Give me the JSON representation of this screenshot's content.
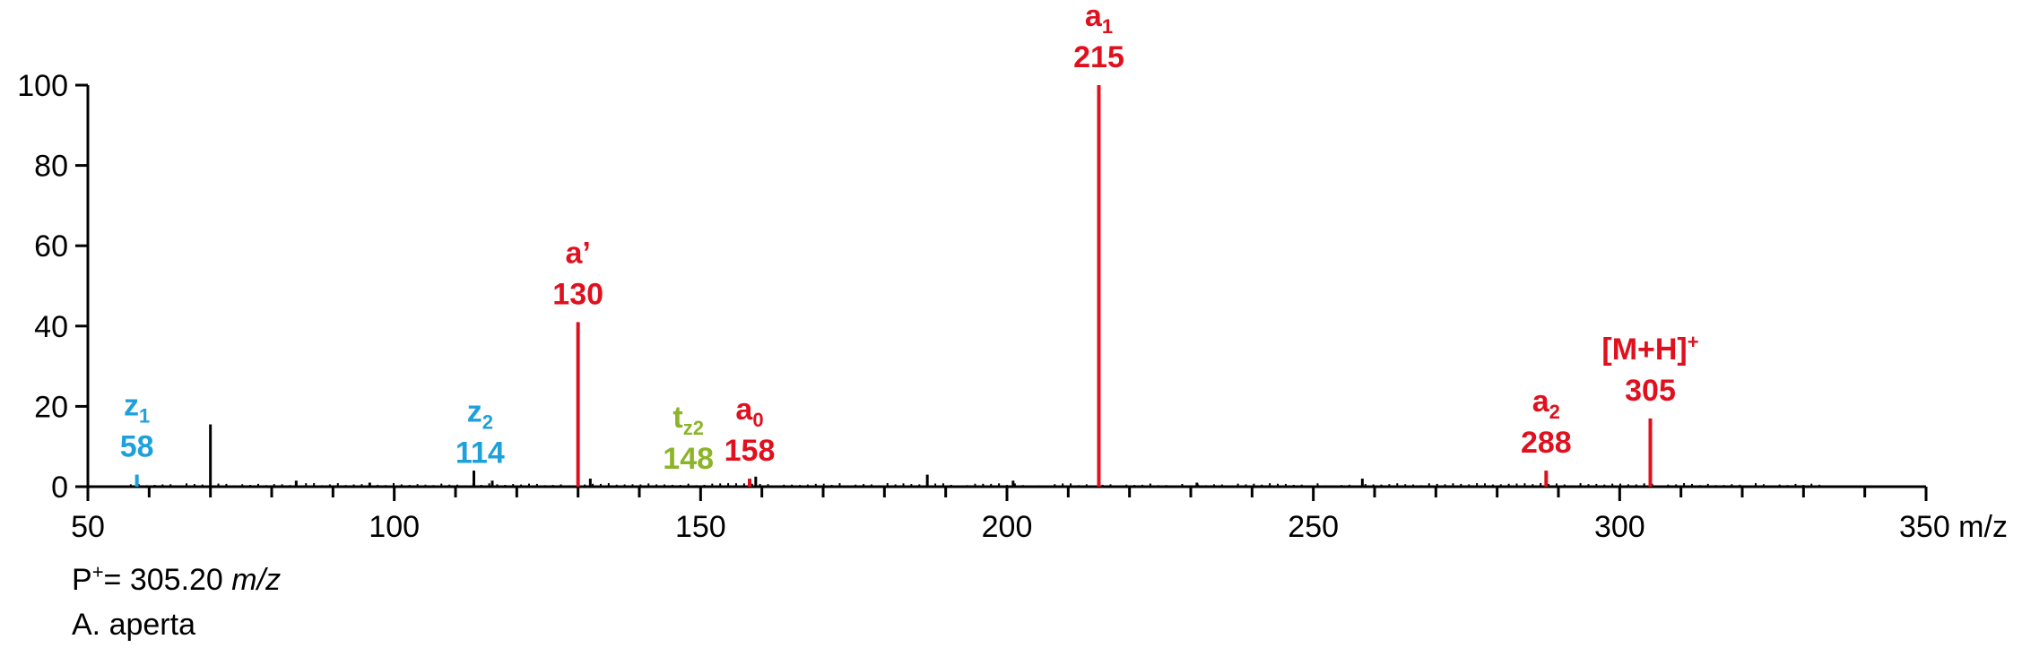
{
  "chart_data": {
    "type": "bar",
    "subtype": "mass-spectrum",
    "xlabel": "m/z",
    "ylabel": "",
    "xlim": [
      50,
      350
    ],
    "ylim": [
      0,
      100
    ],
    "x_ticks": [
      50,
      100,
      150,
      200,
      250,
      300,
      350
    ],
    "y_ticks": [
      0,
      20,
      40,
      60,
      80,
      100
    ],
    "x_tick_labels": [
      "50",
      "100",
      "150",
      "200",
      "250",
      "300",
      "350 m/z"
    ],
    "y_tick_labels": [
      "0",
      "20",
      "40",
      "60",
      "80",
      "100"
    ],
    "colors": {
      "axis": "#000000",
      "red": "#e0101e",
      "blue": "#1ea0dc",
      "green": "#8cb428"
    },
    "annotated_peaks": [
      {
        "mz": 58,
        "intensity": 3,
        "color": "#1ea0dc",
        "ion": "z",
        "sub": "1",
        "value": "58"
      },
      {
        "mz": 114,
        "intensity": 1.5,
        "color": "#1ea0dc",
        "ion": "z",
        "sub": "2",
        "value": "114",
        "no_bar": true
      },
      {
        "mz": 130,
        "intensity": 41,
        "color": "#e0101e",
        "ion": "a’",
        "sub": "",
        "value": "130"
      },
      {
        "mz": 148,
        "intensity": 0,
        "color": "#8cb428",
        "ion": "t",
        "sub": "z2",
        "value": "148",
        "no_bar": true
      },
      {
        "mz": 158,
        "intensity": 2,
        "color": "#e0101e",
        "ion": "a",
        "sub": "0",
        "value": "158"
      },
      {
        "mz": 215,
        "intensity": 100,
        "color": "#e0101e",
        "ion": "a",
        "sub": "1",
        "value": "215"
      },
      {
        "mz": 288,
        "intensity": 4,
        "color": "#e0101e",
        "ion": "a",
        "sub": "2",
        "value": "288"
      },
      {
        "mz": 305,
        "intensity": 17,
        "color": "#e0101e",
        "ion": "[M+H]",
        "sup": "+",
        "value": "305"
      }
    ],
    "other_peaks": [
      {
        "mz": 70,
        "intensity": 15.5
      },
      {
        "mz": 84,
        "intensity": 1.5
      },
      {
        "mz": 96,
        "intensity": 1
      },
      {
        "mz": 113,
        "intensity": 4
      },
      {
        "mz": 116,
        "intensity": 1.5
      },
      {
        "mz": 132,
        "intensity": 2
      },
      {
        "mz": 159,
        "intensity": 2.5
      },
      {
        "mz": 187,
        "intensity": 3
      },
      {
        "mz": 201,
        "intensity": 1.5
      },
      {
        "mz": 231,
        "intensity": 1
      },
      {
        "mz": 258,
        "intensity": 2
      }
    ]
  },
  "footer": {
    "precursor_prefix": "P",
    "precursor_sup": "+",
    "precursor_value": "= 305.20 ",
    "precursor_unit": "m/z",
    "species": "A. aperta"
  }
}
